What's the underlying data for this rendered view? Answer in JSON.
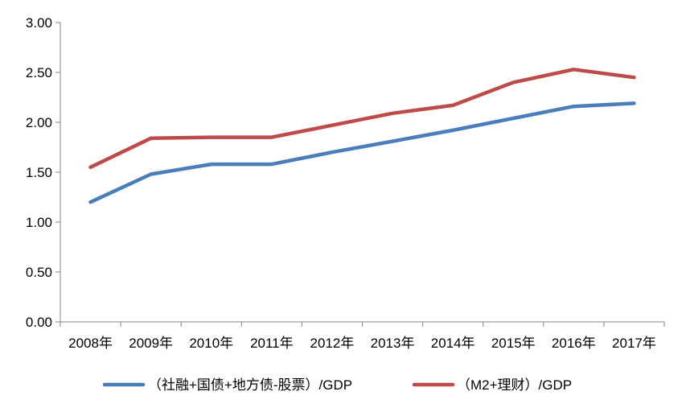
{
  "chart_data": {
    "type": "line",
    "title": "",
    "xlabel": "",
    "ylabel": "",
    "categories": [
      "2008年",
      "2009年",
      "2010年",
      "2011年",
      "2012年",
      "2013年",
      "2014年",
      "2015年",
      "2016年",
      "2017年"
    ],
    "ylim": [
      0,
      3
    ],
    "yticks": [
      "0.00",
      "0.50",
      "1.00",
      "1.50",
      "2.00",
      "2.50",
      "3.00"
    ],
    "grid": false,
    "legend_position": "bottom",
    "series": [
      {
        "name": "（社融+国债+地方债-股票）/GDP",
        "color": "#4a7ebb",
        "values": [
          1.2,
          1.48,
          1.58,
          1.58,
          1.7,
          1.81,
          1.92,
          2.04,
          2.16,
          2.19
        ]
      },
      {
        "name": "（M2+理财）/GDP",
        "color": "#be4b48",
        "values": [
          1.55,
          1.84,
          1.85,
          1.85,
          1.97,
          2.09,
          2.17,
          2.4,
          2.53,
          2.45
        ]
      }
    ]
  }
}
